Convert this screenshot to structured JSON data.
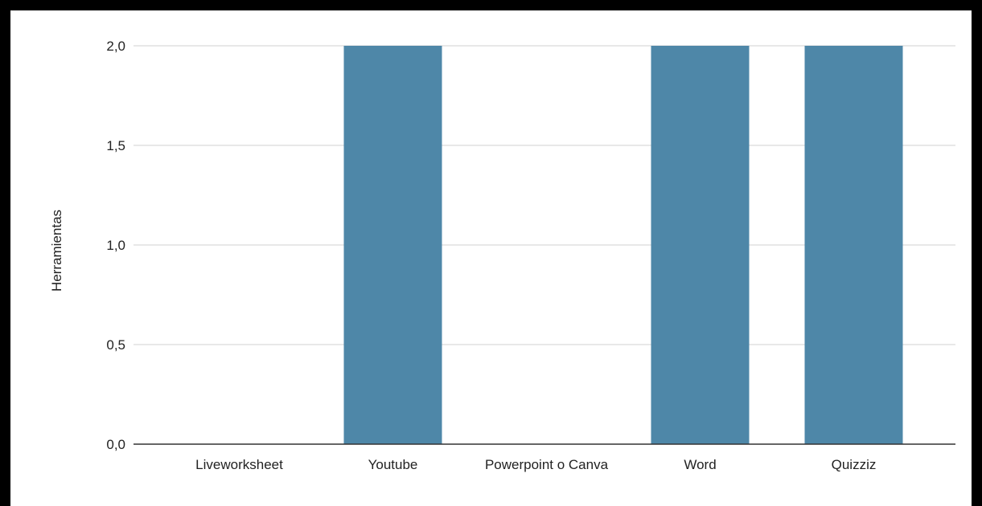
{
  "chart_data": {
    "type": "bar",
    "categories": [
      "Liveworksheet",
      "Youtube",
      "Powerpoint o Canva",
      "Word",
      "Quizziz"
    ],
    "values": [
      0,
      2,
      0,
      2,
      2
    ],
    "xlabel": "",
    "ylabel": "Herramientas",
    "ylim": [
      0,
      2
    ],
    "yticks": [
      "0,0",
      "0,5",
      "1,0",
      "1,5",
      "2,0"
    ],
    "grid": true,
    "legend": "none",
    "bar_color": "#4e87a8",
    "grid_color": "#d0d0d0",
    "baseline_color": "#333333"
  }
}
